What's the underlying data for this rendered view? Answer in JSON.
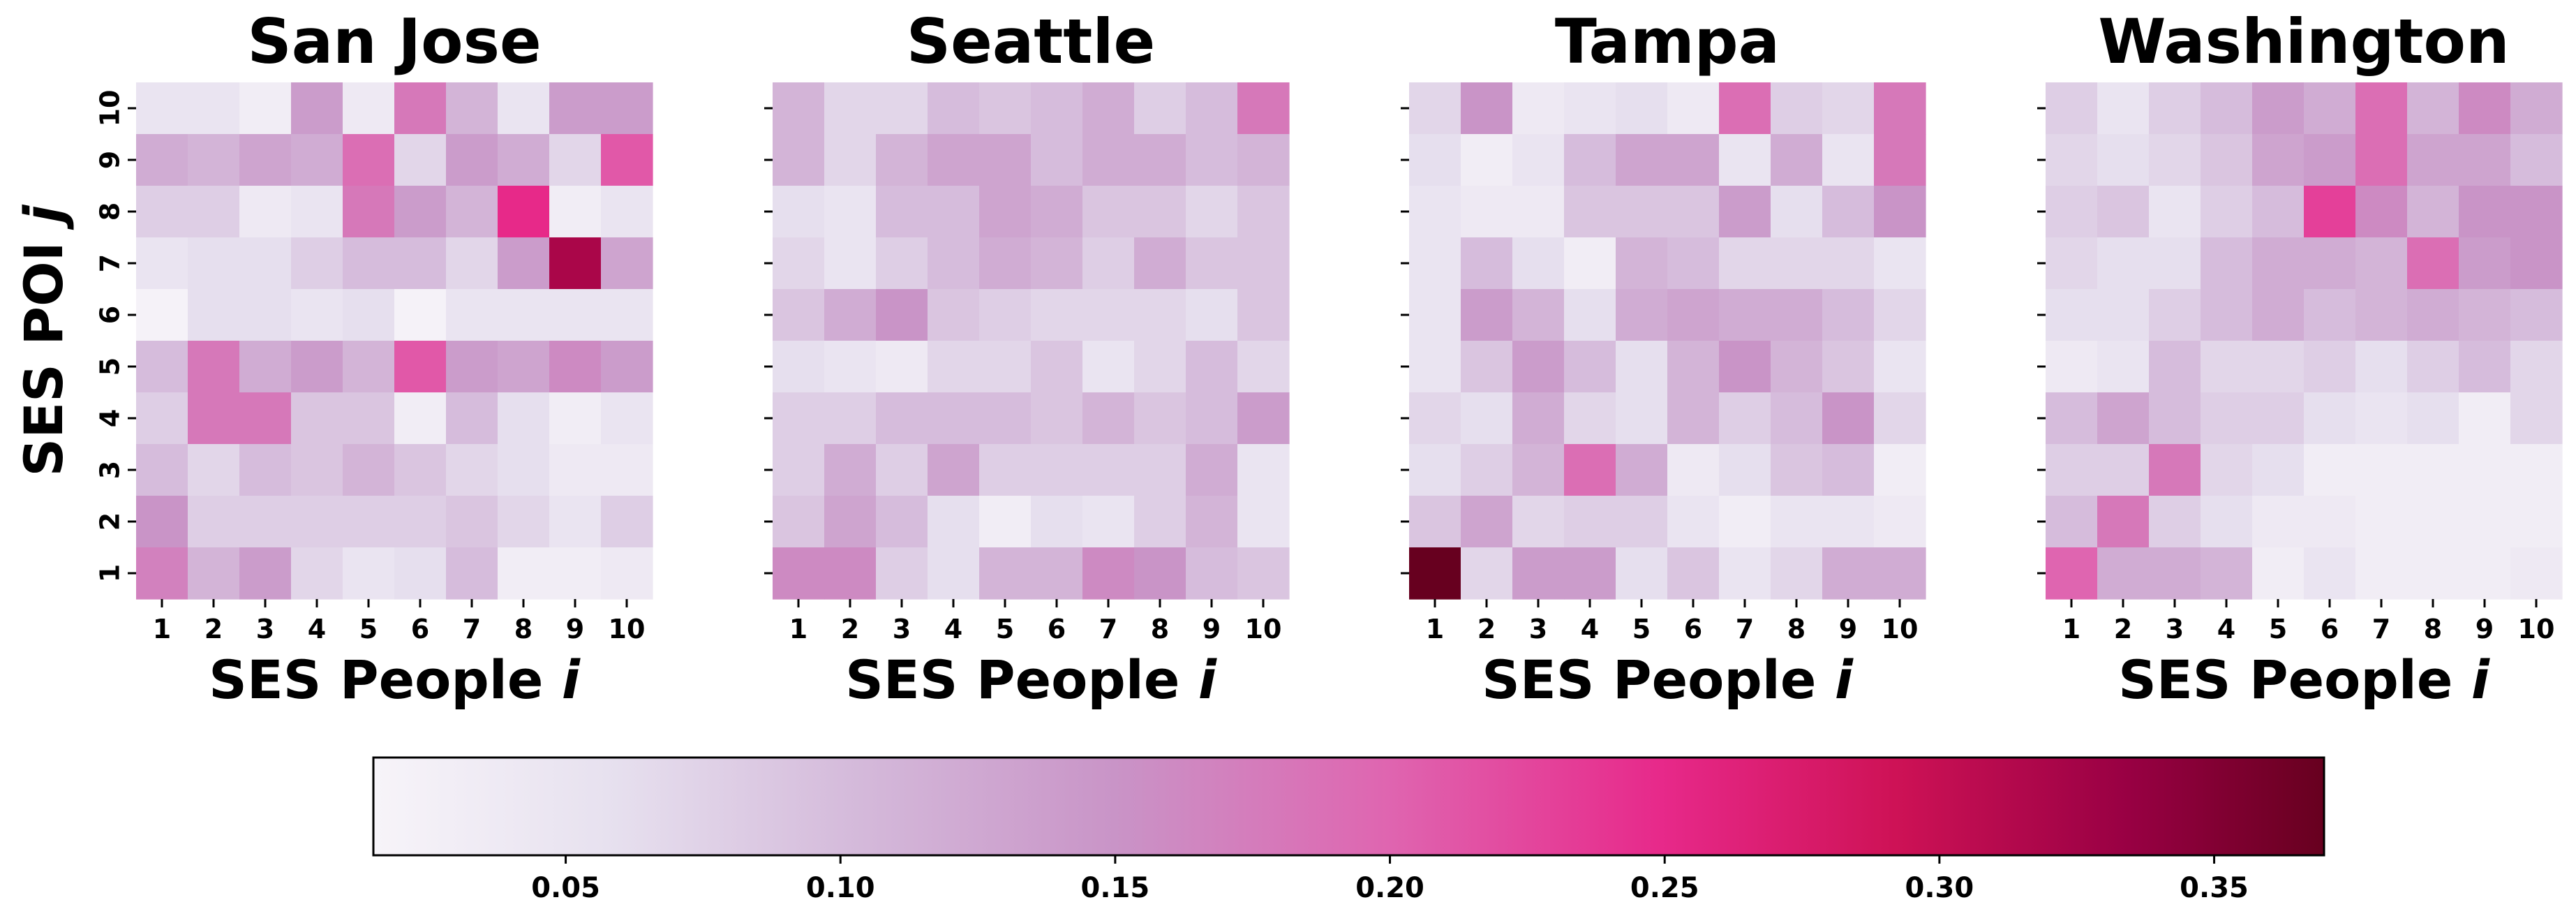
{
  "chart_data": [
    {
      "type": "heatmap",
      "title": "San Jose",
      "xlabel": "SES People i",
      "ylabel": "SES POI j",
      "x_ticks": [
        "1",
        "2",
        "3",
        "4",
        "5",
        "6",
        "7",
        "8",
        "9",
        "10"
      ],
      "y_ticks": [
        "1",
        "2",
        "3",
        "4",
        "5",
        "6",
        "7",
        "8",
        "9",
        "10"
      ],
      "rows_top_to_bottom": [
        [
          0.05,
          0.05,
          0.03,
          0.14,
          0.04,
          0.18,
          0.11,
          0.05,
          0.14,
          0.14
        ],
        [
          0.12,
          0.11,
          0.13,
          0.12,
          0.19,
          0.07,
          0.14,
          0.12,
          0.07,
          0.21
        ],
        [
          0.08,
          0.08,
          0.04,
          0.05,
          0.18,
          0.14,
          0.11,
          0.25,
          0.03,
          0.05
        ],
        [
          0.05,
          0.06,
          0.06,
          0.08,
          0.1,
          0.1,
          0.07,
          0.14,
          0.32,
          0.13
        ],
        [
          0.02,
          0.06,
          0.06,
          0.05,
          0.06,
          0.02,
          0.05,
          0.05,
          0.05,
          0.05
        ],
        [
          0.1,
          0.18,
          0.12,
          0.14,
          0.11,
          0.21,
          0.14,
          0.13,
          0.16,
          0.14
        ],
        [
          0.08,
          0.18,
          0.18,
          0.09,
          0.09,
          0.03,
          0.1,
          0.06,
          0.03,
          0.05
        ],
        [
          0.1,
          0.07,
          0.1,
          0.09,
          0.11,
          0.09,
          0.07,
          0.06,
          0.04,
          0.04
        ],
        [
          0.15,
          0.08,
          0.08,
          0.08,
          0.08,
          0.08,
          0.09,
          0.07,
          0.05,
          0.08
        ],
        [
          0.17,
          0.11,
          0.14,
          0.07,
          0.05,
          0.06,
          0.1,
          0.03,
          0.03,
          0.04
        ]
      ]
    },
    {
      "type": "heatmap",
      "title": "Seattle",
      "xlabel": "SES People i",
      "x_ticks": [
        "1",
        "2",
        "3",
        "4",
        "5",
        "6",
        "7",
        "8",
        "9",
        "10"
      ],
      "y_ticks": [
        "1",
        "2",
        "3",
        "4",
        "5",
        "6",
        "7",
        "8",
        "9",
        "10"
      ],
      "rows_top_to_bottom": [
        [
          0.11,
          0.07,
          0.07,
          0.1,
          0.09,
          0.1,
          0.12,
          0.08,
          0.1,
          0.18
        ],
        [
          0.11,
          0.07,
          0.11,
          0.13,
          0.13,
          0.1,
          0.12,
          0.12,
          0.1,
          0.11
        ],
        [
          0.06,
          0.05,
          0.1,
          0.1,
          0.13,
          0.12,
          0.09,
          0.09,
          0.07,
          0.09
        ],
        [
          0.07,
          0.05,
          0.08,
          0.1,
          0.12,
          0.11,
          0.08,
          0.12,
          0.09,
          0.09
        ],
        [
          0.09,
          0.12,
          0.15,
          0.09,
          0.08,
          0.07,
          0.07,
          0.07,
          0.06,
          0.09
        ],
        [
          0.06,
          0.05,
          0.04,
          0.07,
          0.07,
          0.09,
          0.05,
          0.07,
          0.1,
          0.07
        ],
        [
          0.08,
          0.08,
          0.1,
          0.1,
          0.1,
          0.09,
          0.11,
          0.09,
          0.1,
          0.14
        ],
        [
          0.08,
          0.12,
          0.08,
          0.13,
          0.08,
          0.08,
          0.08,
          0.08,
          0.12,
          0.05
        ],
        [
          0.09,
          0.13,
          0.1,
          0.06,
          0.03,
          0.06,
          0.05,
          0.08,
          0.11,
          0.05
        ],
        [
          0.16,
          0.16,
          0.08,
          0.06,
          0.11,
          0.11,
          0.16,
          0.15,
          0.1,
          0.09
        ]
      ]
    },
    {
      "type": "heatmap",
      "title": "Tampa",
      "xlabel": "SES People i",
      "x_ticks": [
        "1",
        "2",
        "3",
        "4",
        "5",
        "6",
        "7",
        "8",
        "9",
        "10"
      ],
      "y_ticks": [
        "1",
        "2",
        "3",
        "4",
        "5",
        "6",
        "7",
        "8",
        "9",
        "10"
      ],
      "rows_top_to_bottom": [
        [
          0.07,
          0.15,
          0.04,
          0.05,
          0.06,
          0.04,
          0.19,
          0.08,
          0.07,
          0.18
        ],
        [
          0.06,
          0.03,
          0.05,
          0.1,
          0.13,
          0.13,
          0.05,
          0.12,
          0.05,
          0.18
        ],
        [
          0.05,
          0.04,
          0.04,
          0.09,
          0.09,
          0.09,
          0.14,
          0.06,
          0.1,
          0.15
        ],
        [
          0.05,
          0.1,
          0.06,
          0.03,
          0.11,
          0.1,
          0.07,
          0.07,
          0.07,
          0.05
        ],
        [
          0.05,
          0.14,
          0.11,
          0.06,
          0.12,
          0.13,
          0.12,
          0.12,
          0.1,
          0.07
        ],
        [
          0.05,
          0.09,
          0.14,
          0.1,
          0.06,
          0.11,
          0.15,
          0.11,
          0.09,
          0.05
        ],
        [
          0.07,
          0.06,
          0.12,
          0.07,
          0.06,
          0.11,
          0.08,
          0.1,
          0.15,
          0.07
        ],
        [
          0.06,
          0.08,
          0.11,
          0.19,
          0.12,
          0.04,
          0.06,
          0.09,
          0.1,
          0.03
        ],
        [
          0.09,
          0.13,
          0.07,
          0.08,
          0.08,
          0.05,
          0.03,
          0.05,
          0.05,
          0.04
        ],
        [
          0.37,
          0.07,
          0.14,
          0.14,
          0.06,
          0.09,
          0.05,
          0.07,
          0.12,
          0.12
        ]
      ]
    },
    {
      "type": "heatmap",
      "title": "Washington",
      "xlabel": "SES People i",
      "x_ticks": [
        "1",
        "2",
        "3",
        "4",
        "5",
        "6",
        "7",
        "8",
        "9",
        "10"
      ],
      "y_ticks": [
        "1",
        "2",
        "3",
        "4",
        "5",
        "6",
        "7",
        "8",
        "9",
        "10"
      ],
      "rows_top_to_bottom": [
        [
          0.08,
          0.05,
          0.08,
          0.1,
          0.14,
          0.12,
          0.19,
          0.11,
          0.16,
          0.12
        ],
        [
          0.07,
          0.06,
          0.07,
          0.09,
          0.13,
          0.14,
          0.19,
          0.13,
          0.13,
          0.1
        ],
        [
          0.08,
          0.09,
          0.05,
          0.08,
          0.1,
          0.23,
          0.16,
          0.11,
          0.15,
          0.15
        ],
        [
          0.07,
          0.06,
          0.06,
          0.1,
          0.12,
          0.12,
          0.11,
          0.19,
          0.14,
          0.15
        ],
        [
          0.06,
          0.06,
          0.08,
          0.1,
          0.12,
          0.1,
          0.11,
          0.12,
          0.11,
          0.1
        ],
        [
          0.04,
          0.05,
          0.1,
          0.07,
          0.07,
          0.08,
          0.06,
          0.08,
          0.1,
          0.07
        ],
        [
          0.1,
          0.13,
          0.1,
          0.08,
          0.08,
          0.06,
          0.05,
          0.06,
          0.03,
          0.07
        ],
        [
          0.08,
          0.08,
          0.18,
          0.07,
          0.06,
          0.03,
          0.03,
          0.03,
          0.03,
          0.03
        ],
        [
          0.1,
          0.18,
          0.08,
          0.06,
          0.04,
          0.04,
          0.03,
          0.03,
          0.03,
          0.03
        ],
        [
          0.2,
          0.12,
          0.12,
          0.11,
          0.03,
          0.05,
          0.03,
          0.03,
          0.03,
          0.04
        ]
      ]
    }
  ],
  "colorbar": {
    "vmin": 0.015,
    "vmax": 0.37,
    "ticks": [
      0.05,
      0.1,
      0.15,
      0.2,
      0.25,
      0.3,
      0.35
    ],
    "tick_labels": [
      "0.05",
      "0.10",
      "0.15",
      "0.20",
      "0.25",
      "0.30",
      "0.35"
    ],
    "colormap": [
      {
        "t": 0.0,
        "color": "#f7f4f9"
      },
      {
        "t": 0.12,
        "color": "#e7e1ef"
      },
      {
        "t": 0.25,
        "color": "#d4b9da"
      },
      {
        "t": 0.38,
        "color": "#c994c7"
      },
      {
        "t": 0.52,
        "color": "#df65b0"
      },
      {
        "t": 0.66,
        "color": "#e7298a"
      },
      {
        "t": 0.78,
        "color": "#ce1256"
      },
      {
        "t": 0.9,
        "color": "#980043"
      },
      {
        "t": 1.0,
        "color": "#67001f"
      }
    ]
  }
}
